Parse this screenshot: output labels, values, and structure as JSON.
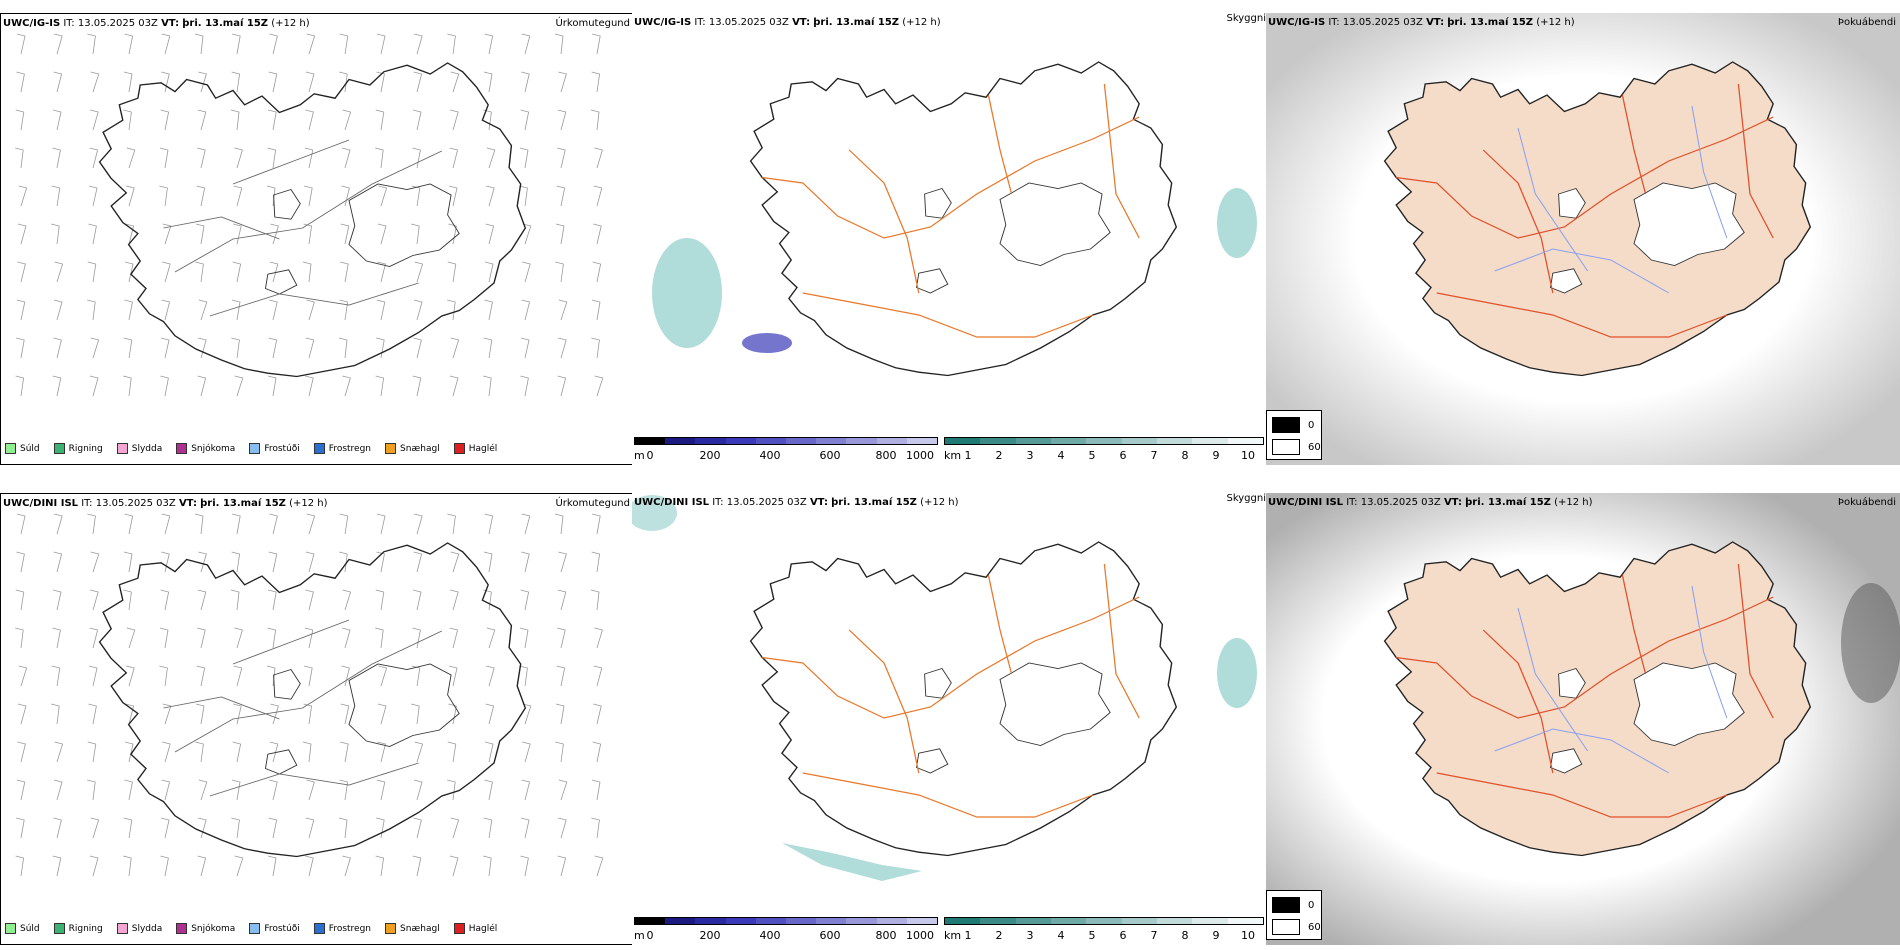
{
  "rows": [
    {
      "model": "UWC/IG-IS",
      "it_label": "IT:",
      "it_value": "13.05.2025 03Z",
      "vt_label": "VT:",
      "vt_value": "þri. 13.maí 15Z",
      "lead": "(+12 h)",
      "dini": false
    },
    {
      "model": "UWC/DINI ISL",
      "it_label": "IT:",
      "it_value": "13.05.2025 03Z",
      "vt_label": "VT:",
      "vt_value": "þri. 13.maí 15Z",
      "lead": "(+12 h)",
      "dini": true
    }
  ],
  "fields": {
    "precip_type": "Úrkomutegund",
    "visibility": "Skyggni",
    "fog": "Þokuábendi"
  },
  "precip_legend": [
    {
      "label": "Súld",
      "color": "#90ee90"
    },
    {
      "label": "Rigning",
      "color": "#3cb371"
    },
    {
      "label": "Slydda",
      "color": "#f4a6d2"
    },
    {
      "label": "Snjókoma",
      "color": "#b03090"
    },
    {
      "label": "Frostúði",
      "color": "#87bdf0"
    },
    {
      "label": "Frostregn",
      "color": "#2b6fcf"
    },
    {
      "label": "Snæhagl",
      "color": "#f0a020"
    },
    {
      "label": "Haglél",
      "color": "#e02020"
    }
  ],
  "terrain_scale": {
    "unit": "m",
    "ticks": [
      "0",
      "200",
      "400",
      "600",
      "800",
      "1000"
    ],
    "colors": [
      "#000000",
      "#1a1a80",
      "#2a2aa0",
      "#3a3ab8",
      "#5050c0",
      "#6868c8",
      "#8080d0",
      "#9898d8",
      "#b0b0e0",
      "#c8c8ea"
    ]
  },
  "vis_scale": {
    "unit": "km",
    "ticks": [
      "1",
      "2",
      "3",
      "4",
      "5",
      "6",
      "7",
      "8",
      "9",
      "10"
    ],
    "colors": [
      "#1f7a74",
      "#3a8a85",
      "#559a96",
      "#70aaa7",
      "#8bbab8",
      "#a6cac9",
      "#c1dada",
      "#dceaea",
      "#f2f8f8"
    ]
  },
  "fog_legend": [
    {
      "label": "0",
      "color": "#000000"
    },
    {
      "label": "60",
      "color": "#ffffff"
    }
  ]
}
